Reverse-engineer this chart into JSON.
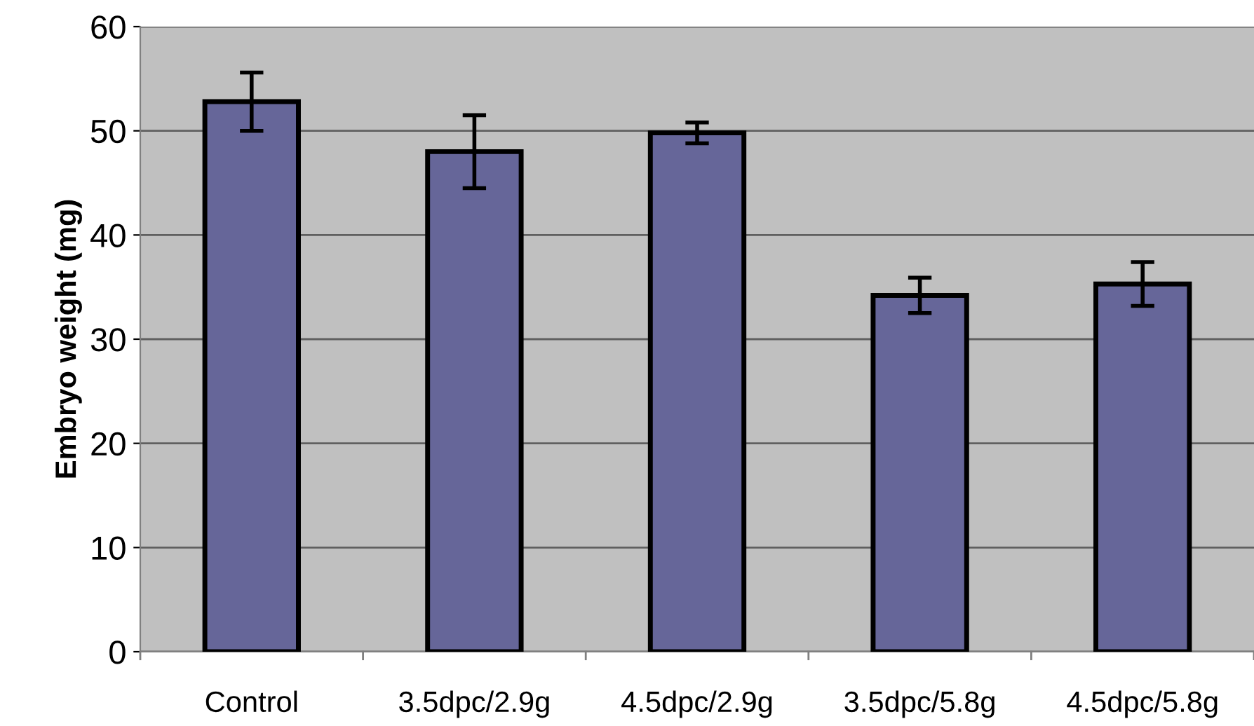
{
  "chart_data": {
    "type": "bar",
    "ylabel": "Embryo weight (mg)",
    "categories": [
      "Control",
      "3.5dpc/2.9g",
      "4.5dpc/2.9g",
      "3.5dpc/5.8g",
      "4.5dpc/5.8g"
    ],
    "values": [
      52.8,
      48.0,
      49.8,
      34.2,
      35.3
    ],
    "errors": [
      2.8,
      3.5,
      1.0,
      1.7,
      2.1
    ],
    "color": "#666699",
    "ylim": [
      0,
      60
    ],
    "yticks": [
      0,
      10,
      20,
      30,
      40,
      50,
      60
    ],
    "grid": "y"
  }
}
